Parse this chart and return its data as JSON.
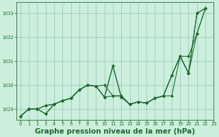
{
  "bg_color": "#cceedd",
  "grid_color": "#99ccbb",
  "line_color": "#1a6b2a",
  "xlabel": "Graphe pression niveau de la mer (hPa)",
  "xlabel_fontsize": 7.5,
  "xlim": [
    -0.5,
    23
  ],
  "ylim": [
    1028.55,
    1033.45
  ],
  "yticks": [
    1029,
    1030,
    1031,
    1032,
    1033
  ],
  "xticks": [
    0,
    1,
    2,
    3,
    4,
    5,
    6,
    7,
    8,
    9,
    10,
    11,
    12,
    13,
    14,
    15,
    16,
    17,
    18,
    19,
    20,
    21,
    22,
    23
  ],
  "series": [
    {
      "x": [
        0,
        1,
        2,
        3,
        4,
        5,
        6,
        7,
        8,
        9,
        10,
        11,
        12,
        13,
        14,
        15,
        16,
        17,
        18,
        19,
        20,
        21,
        22
      ],
      "y": [
        1028.7,
        1029.0,
        1029.0,
        1028.8,
        1029.2,
        1029.35,
        1029.45,
        1029.8,
        1030.0,
        1029.95,
        1029.5,
        1030.8,
        1029.5,
        1029.2,
        1029.3,
        1029.25,
        1029.45,
        1029.55,
        1030.4,
        1031.2,
        1030.5,
        1033.0,
        1033.2
      ]
    },
    {
      "x": [
        0,
        1,
        2,
        3,
        4,
        5,
        6,
        7,
        8,
        9,
        10,
        11,
        12,
        13,
        14,
        15,
        16,
        17,
        18,
        19,
        20,
        21,
        22
      ],
      "y": [
        1028.7,
        1029.0,
        1029.0,
        1029.15,
        1029.2,
        1029.35,
        1029.45,
        1029.8,
        1030.0,
        1029.95,
        1029.5,
        1029.55,
        1029.55,
        1029.2,
        1029.3,
        1029.25,
        1029.45,
        1029.55,
        1030.4,
        1031.2,
        1030.5,
        1032.15,
        1033.2
      ]
    },
    {
      "x": [
        0,
        1,
        2,
        3,
        4,
        5,
        6,
        7,
        8,
        9,
        10,
        11,
        12,
        13,
        14,
        15,
        16,
        17,
        18,
        19,
        20,
        21,
        22
      ],
      "y": [
        1028.7,
        1029.0,
        1029.0,
        1029.15,
        1029.2,
        1029.35,
        1029.45,
        1029.8,
        1030.0,
        1029.95,
        1030.0,
        1029.55,
        1029.55,
        1029.2,
        1029.3,
        1029.25,
        1029.45,
        1029.55,
        1029.55,
        1031.2,
        1031.2,
        1032.15,
        1033.2
      ]
    },
    {
      "x": [
        0,
        1,
        2,
        3,
        4,
        5,
        6,
        7,
        8,
        9,
        10,
        11,
        12,
        13,
        14,
        15,
        16,
        17,
        18,
        19,
        20,
        21,
        22
      ],
      "y": [
        1028.7,
        1029.0,
        1029.0,
        1028.8,
        1029.2,
        1029.35,
        1029.45,
        1029.8,
        1030.0,
        1029.95,
        1029.5,
        1030.8,
        1029.5,
        1029.2,
        1029.3,
        1029.25,
        1029.45,
        1029.55,
        1030.4,
        1031.2,
        1030.5,
        1033.0,
        1033.2
      ]
    }
  ]
}
